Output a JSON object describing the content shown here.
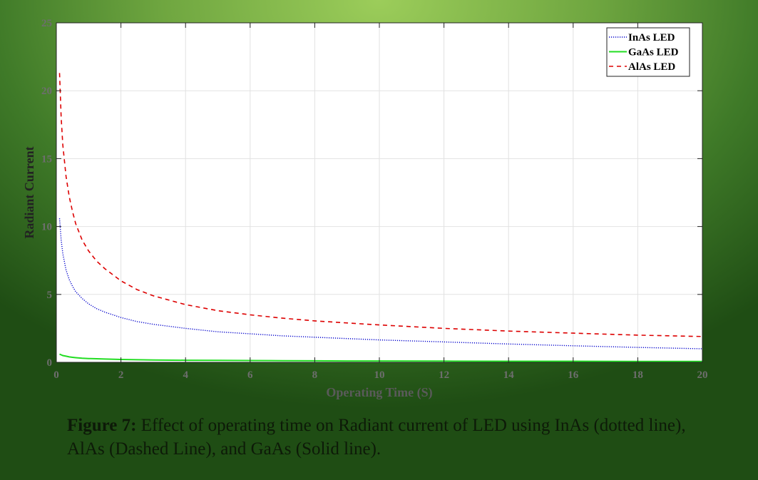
{
  "chart_data": {
    "type": "line",
    "title": "",
    "xlabel": "Operating Time (S)",
    "ylabel": "Radiant Current",
    "xlim": [
      0,
      20
    ],
    "ylim": [
      0,
      25
    ],
    "x_ticks": [
      "0",
      "2",
      "4",
      "6",
      "8",
      "10",
      "12",
      "14",
      "16",
      "18",
      "20"
    ],
    "y_ticks": [
      "0",
      "5",
      "10",
      "15",
      "20",
      "25"
    ],
    "grid": true,
    "legend_position": "top-right",
    "x": [
      0.1,
      0.15,
      0.2,
      0.3,
      0.4,
      0.5,
      0.6,
      0.8,
      1,
      1.25,
      1.5,
      2,
      2.5,
      3,
      4,
      5,
      6,
      7,
      8,
      9,
      10,
      12,
      14,
      16,
      18,
      20
    ],
    "series": [
      {
        "name": "InAs LED",
        "style": "dotted",
        "color": "#0000cc",
        "values": [
          10.6,
          9.0,
          8.0,
          6.8,
          6.1,
          5.6,
          5.2,
          4.7,
          4.3,
          3.95,
          3.7,
          3.3,
          3.0,
          2.8,
          2.5,
          2.25,
          2.1,
          1.95,
          1.85,
          1.75,
          1.65,
          1.5,
          1.35,
          1.22,
          1.1,
          1.0
        ]
      },
      {
        "name": "GaAs LED",
        "style": "solid",
        "color": "#22dd22",
        "values": [
          0.6,
          0.55,
          0.5,
          0.45,
          0.4,
          0.37,
          0.34,
          0.3,
          0.28,
          0.26,
          0.24,
          0.21,
          0.19,
          0.17,
          0.15,
          0.14,
          0.13,
          0.12,
          0.11,
          0.1,
          0.1,
          0.09,
          0.08,
          0.08,
          0.07,
          0.07
        ]
      },
      {
        "name": "AlAs LED",
        "style": "dashed",
        "color": "#dd0000",
        "values": [
          21.3,
          18.0,
          16.0,
          13.7,
          12.2,
          11.1,
          10.2,
          9.0,
          8.2,
          7.45,
          6.9,
          6.0,
          5.35,
          4.9,
          4.25,
          3.8,
          3.5,
          3.25,
          3.05,
          2.9,
          2.75,
          2.5,
          2.3,
          2.15,
          2.0,
          1.9
        ]
      }
    ]
  },
  "caption": {
    "label": "Figure 7:",
    "text": " Effect of operating time on Radiant current of LED using InAs (dotted line), AlAs (Dashed Line), and GaAs (Solid line)."
  }
}
